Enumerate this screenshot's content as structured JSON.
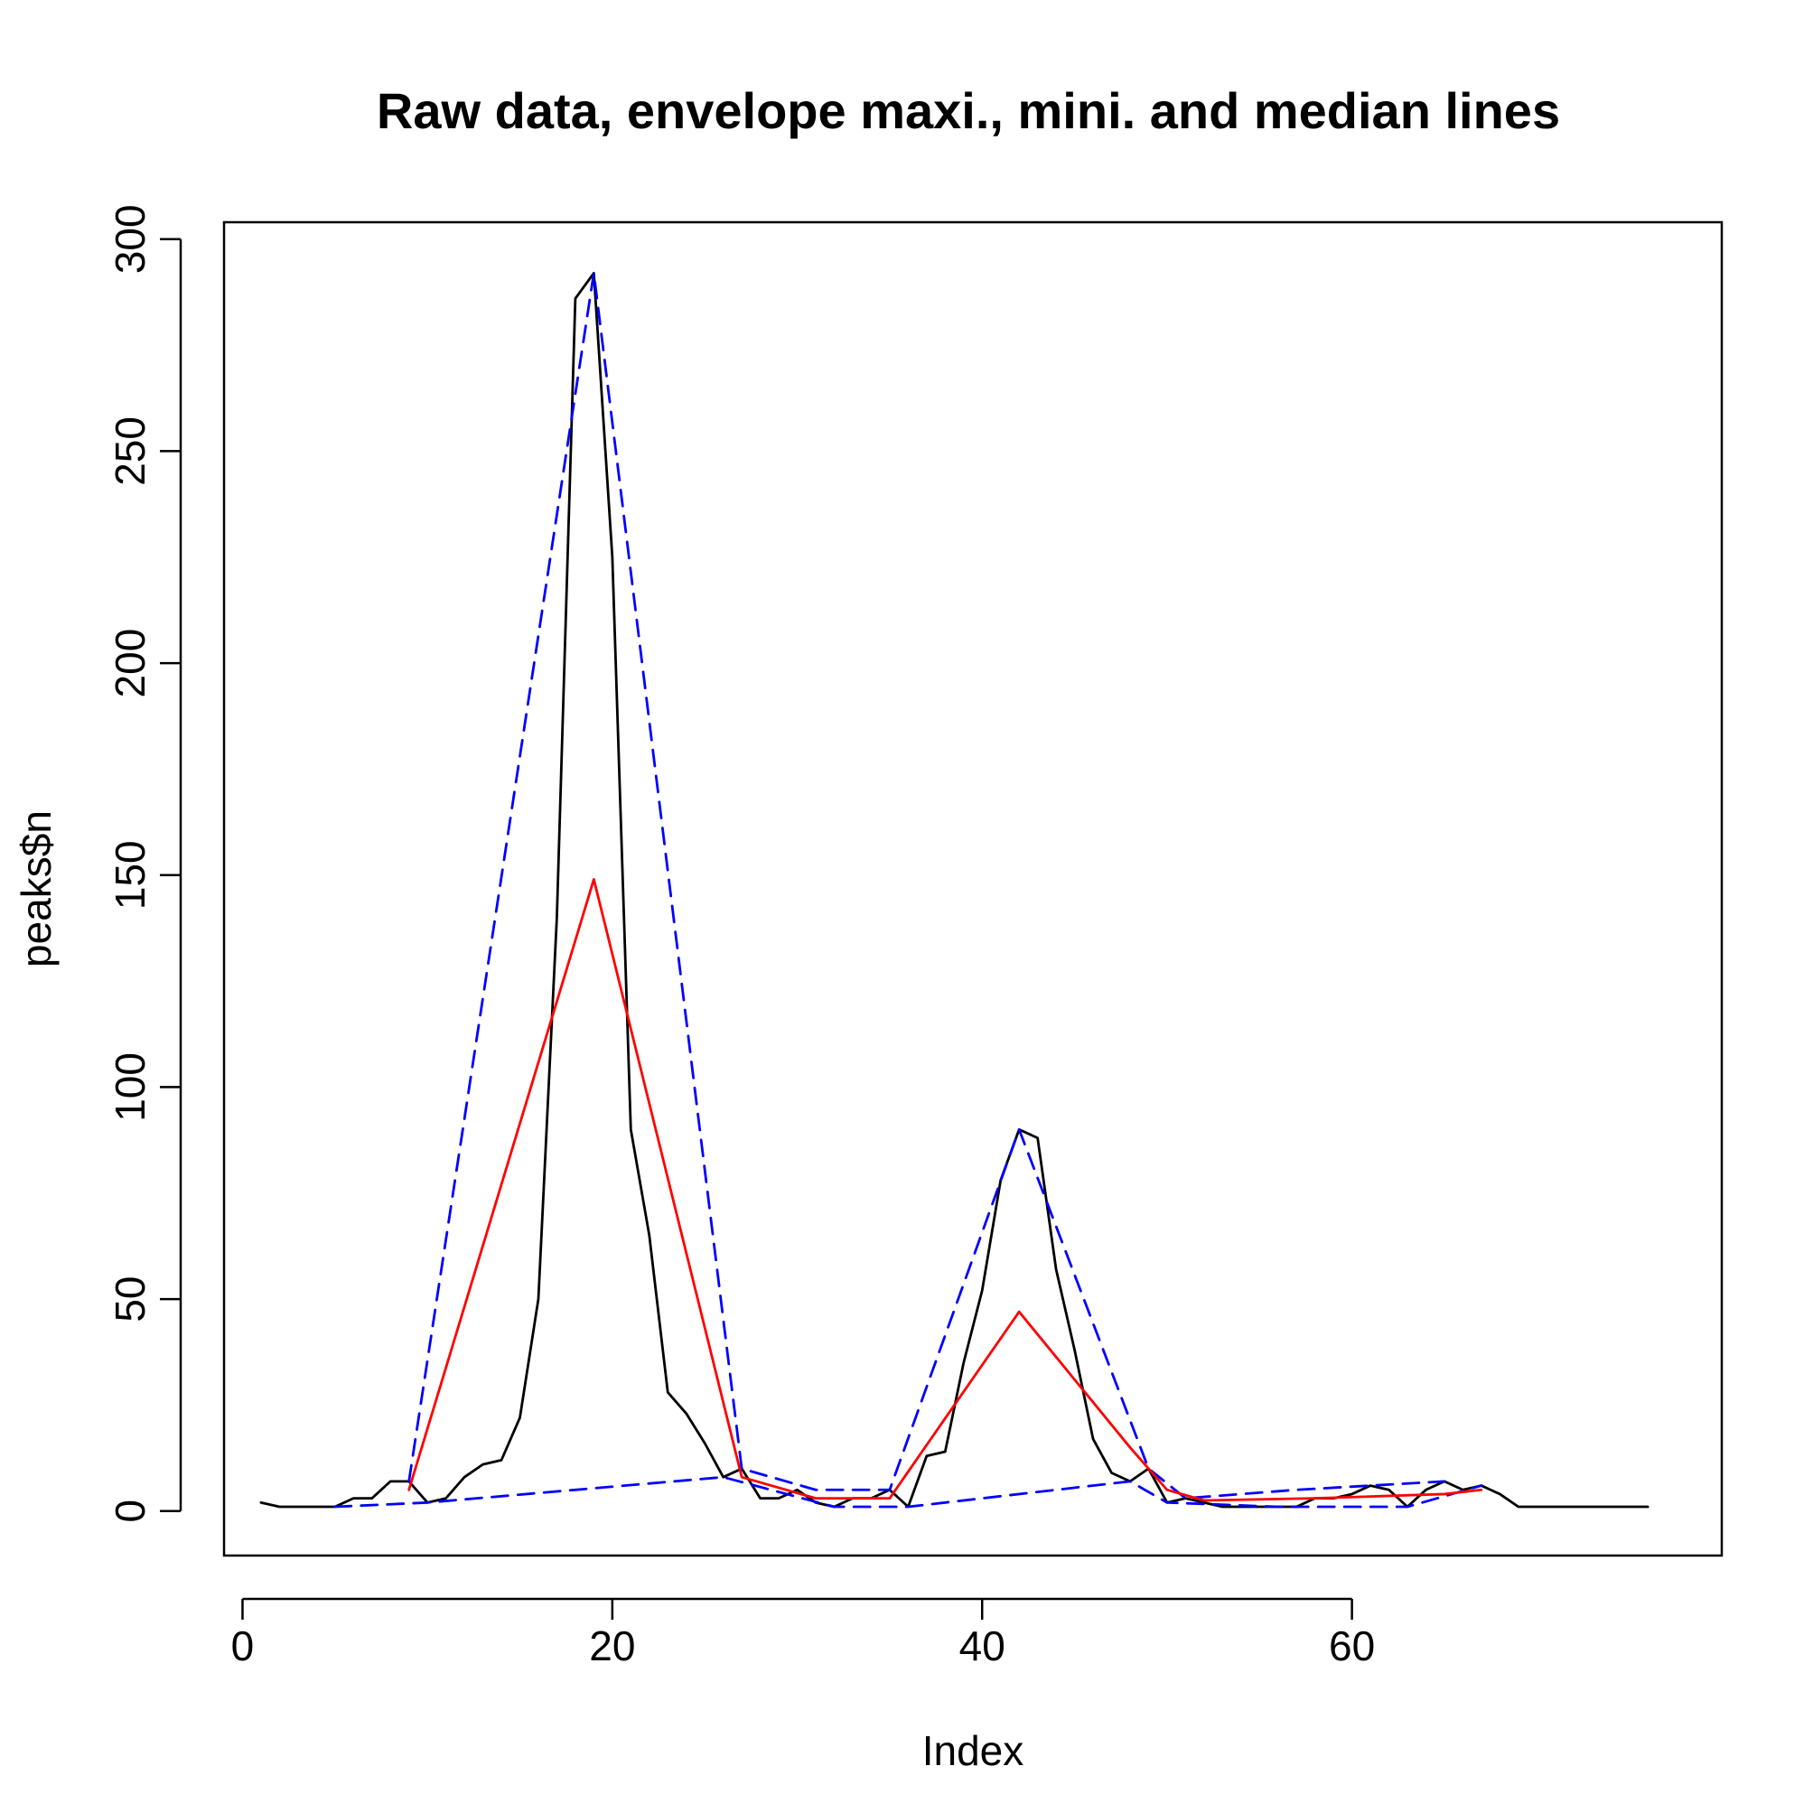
{
  "chart_data": {
    "type": "line",
    "title": "Raw data, envelope maxi., mini. and median lines",
    "xlabel": "Index",
    "ylabel": "peaks$n",
    "xlim": [
      -1,
      80
    ],
    "ylim": [
      -10.5,
      304
    ],
    "xticks": [
      0,
      20,
      40,
      60
    ],
    "yticks": [
      0,
      50,
      100,
      150,
      200,
      250,
      300
    ],
    "series": [
      {
        "color": "#000000",
        "dash": "solid",
        "x": [
          1,
          2,
          3,
          4,
          5,
          6,
          7,
          8,
          9,
          10,
          11,
          12,
          13,
          14,
          15,
          16,
          17,
          18,
          19,
          20,
          21,
          22,
          23,
          24,
          25,
          26,
          27,
          28,
          29,
          30,
          31,
          32,
          33,
          34,
          35,
          36,
          37,
          38,
          39,
          40,
          41,
          42,
          43,
          44,
          45,
          46,
          47,
          48,
          49,
          50,
          51,
          52,
          53,
          54,
          55,
          56,
          57,
          58,
          59,
          60,
          61,
          62,
          63,
          64,
          65,
          66,
          67,
          68,
          69,
          70,
          71,
          72,
          73,
          74,
          75,
          76
        ],
        "y": [
          2,
          1,
          1,
          1,
          1,
          3,
          3,
          7,
          7,
          2,
          3,
          8,
          11,
          12,
          22,
          50,
          140,
          286,
          292,
          225,
          90,
          65,
          28,
          23,
          16,
          8,
          10,
          3,
          3,
          5,
          2,
          1,
          3,
          3,
          5,
          1,
          13,
          14,
          35,
          52,
          78,
          90,
          88,
          57,
          38,
          17,
          9,
          7,
          10,
          2,
          3,
          2,
          1,
          1,
          1,
          1,
          1,
          3,
          3,
          4,
          6,
          5,
          1,
          5,
          7,
          5,
          6,
          4,
          1,
          1,
          1,
          1,
          1,
          1,
          1,
          1
        ]
      },
      {
        "color": "#0000ff",
        "dash": "dashed",
        "x": [
          9,
          19,
          27,
          31,
          35,
          42,
          49,
          51,
          57,
          61,
          65
        ],
        "y": [
          7,
          292,
          10,
          5,
          5,
          90,
          10,
          3,
          5,
          6,
          7
        ]
      },
      {
        "color": "#0000ff",
        "dash": "dashed",
        "x": [
          5,
          10,
          26,
          32,
          36,
          48,
          50,
          56,
          63,
          67
        ],
        "y": [
          1,
          2,
          8,
          1,
          1,
          7,
          2,
          1,
          1,
          6
        ]
      },
      {
        "color": "#ff0000",
        "dash": "solid",
        "x": [
          9,
          19,
          27,
          31,
          35,
          42,
          48,
          50,
          52,
          58,
          65,
          67
        ],
        "y": [
          5,
          149,
          8,
          3,
          3,
          47,
          15,
          5,
          2.5,
          3,
          4,
          5
        ]
      }
    ]
  }
}
